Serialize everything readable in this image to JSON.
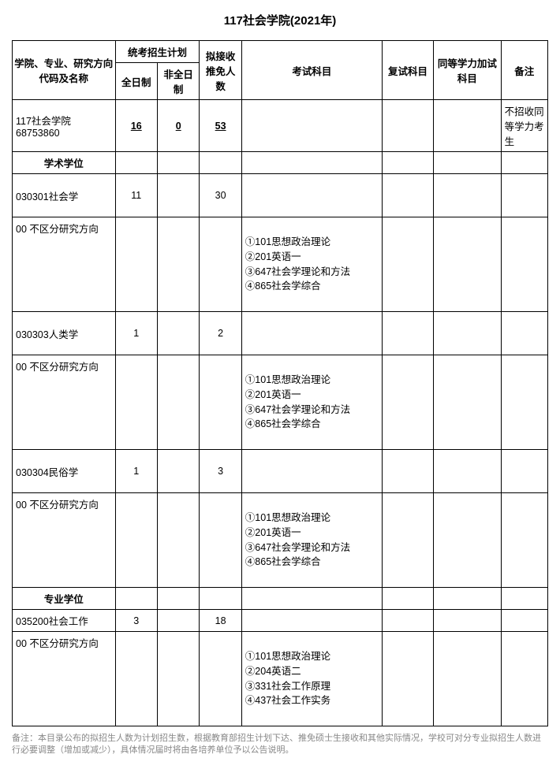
{
  "title": "117社会学院(2021年)",
  "headers": {
    "col1": "学院、专业、研究方向代码及名称",
    "plan_group": "统考招生计划",
    "fulltime": "全日制",
    "parttime": "非全日制",
    "exempt": "拟接收推免人数",
    "exam": "考试科目",
    "retest": "复试科目",
    "equiv": "同等学力加试科目",
    "note": "备注"
  },
  "school_row": {
    "name": "117社会学院\n68753860",
    "fulltime": "16",
    "parttime": "0",
    "exempt": "53",
    "note": "不招收同等学力考生"
  },
  "section1": "学术学位",
  "section2": "专业学位",
  "majors": {
    "m1": {
      "name": "030301社会学",
      "fulltime": "11",
      "exempt": "30"
    },
    "m2": {
      "name": "030303人类学",
      "fulltime": "1",
      "exempt": "2"
    },
    "m3": {
      "name": "030304民俗学",
      "fulltime": "1",
      "exempt": "3"
    },
    "m4": {
      "name": "035200社会工作",
      "fulltime": "3",
      "exempt": "18"
    }
  },
  "direction": "00 不区分研究方向",
  "exams": {
    "set1": "①101思想政治理论\n②201英语一\n③647社会学理论和方法\n④865社会学综合",
    "set2": "①101思想政治理论\n②204英语二\n③331社会工作原理\n④437社会工作实务"
  },
  "footnote": "备注：本目录公布的拟招生人数为计划招生数，根据教育部招生计划下达、推免硕士生接收和其他实际情况，学校可对分专业拟招生人数进行必要调整（增加或减少），具体情况届时将由各培养单位予以公告说明。"
}
